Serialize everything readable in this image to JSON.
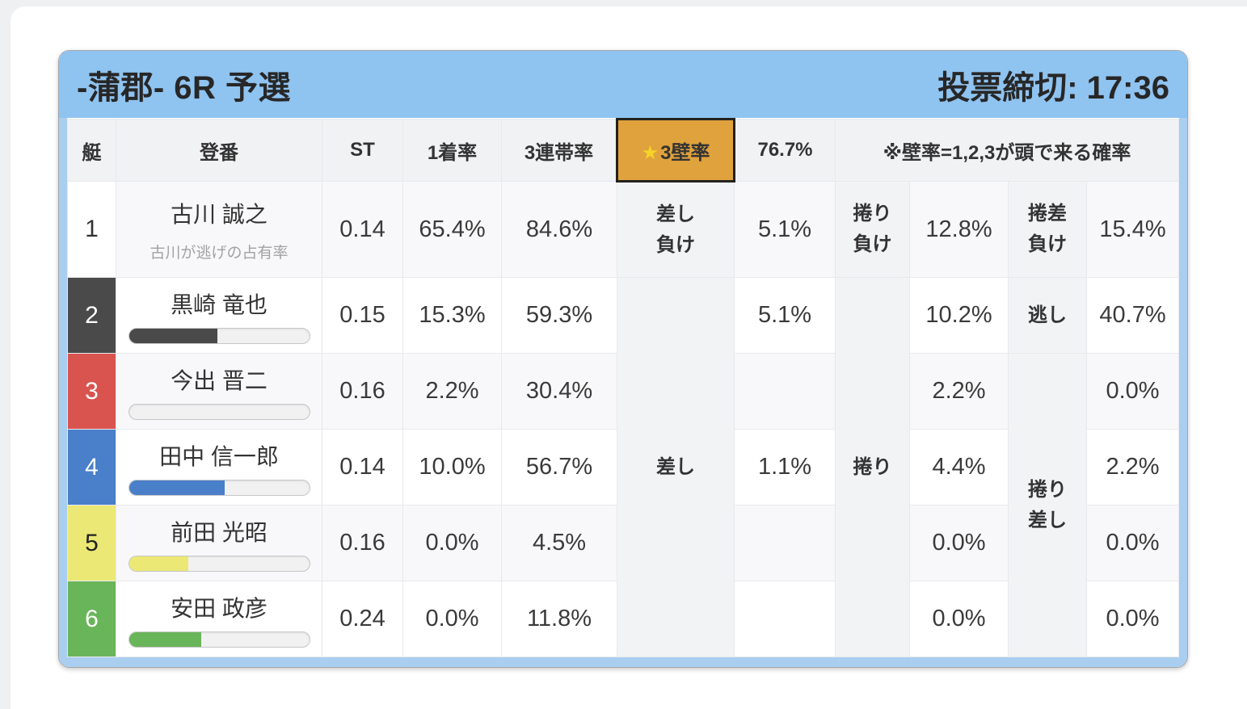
{
  "header": {
    "title": "-蒲郡- 6R 予選",
    "deadline": "投票締切: 17:36"
  },
  "table": {
    "columns": {
      "boat": "艇",
      "racer": "登番",
      "st": "ST",
      "first_rate": "1着率",
      "top3_rate": "3連帯率"
    },
    "wall": {
      "star": "★",
      "label": "3壁率",
      "value": "76.7%",
      "note": "※壁率=1,2,3が頭で来る確率"
    },
    "merged_labels": {
      "sashi": "差し",
      "makuri": "捲り",
      "makuri_sashi": "捲り\n差し"
    },
    "rows": [
      {
        "boat": "1",
        "name": "古川 誠之",
        "subtext": "古川が逃げの占有率",
        "st": "0.14",
        "first": "65.4%",
        "top3": "84.6%",
        "label_a": "差し\n負け",
        "val_a": "5.1%",
        "label_b": "捲り\n負け",
        "val_b": "12.8%",
        "label_c": "捲差\n負け",
        "val_c": "15.4%"
      },
      {
        "boat": "2",
        "name": "黒崎 竜也",
        "bar_percent": 49,
        "st": "0.15",
        "first": "15.3%",
        "top3": "59.3%",
        "val_a": "5.1%",
        "val_b": "10.2%",
        "label_c": "逃し",
        "val_c": "40.7%"
      },
      {
        "boat": "3",
        "name": "今出 晋二",
        "bar_percent": 0,
        "st": "0.16",
        "first": "2.2%",
        "top3": "30.4%",
        "val_a": "",
        "val_b": "2.2%",
        "val_c": "0.0%"
      },
      {
        "boat": "4",
        "name": "田中 信一郎",
        "bar_percent": 53,
        "st": "0.14",
        "first": "10.0%",
        "top3": "56.7%",
        "val_a": "1.1%",
        "val_b": "4.4%",
        "val_c": "2.2%"
      },
      {
        "boat": "5",
        "name": "前田 光昭",
        "bar_percent": 33,
        "st": "0.16",
        "first": "0.0%",
        "top3": "4.5%",
        "val_a": "",
        "val_b": "0.0%",
        "val_c": "0.0%"
      },
      {
        "boat": "6",
        "name": "安田 政彦",
        "bar_percent": 40,
        "st": "0.24",
        "first": "0.0%",
        "top3": "11.8%",
        "val_a": "",
        "val_b": "0.0%",
        "val_c": "0.0%"
      }
    ]
  },
  "colors": {
    "header_blue": "#8fc3f0",
    "frame_blue": "#a9ceef",
    "highlight_orange": "#e0a23c",
    "star_yellow": "#f5d329",
    "boat1": "#ffffff",
    "boat2": "#4a4a4a",
    "boat3": "#d9534f",
    "boat4": "#4a7fc9",
    "boat5": "#ebe876",
    "boat6": "#69b559"
  }
}
